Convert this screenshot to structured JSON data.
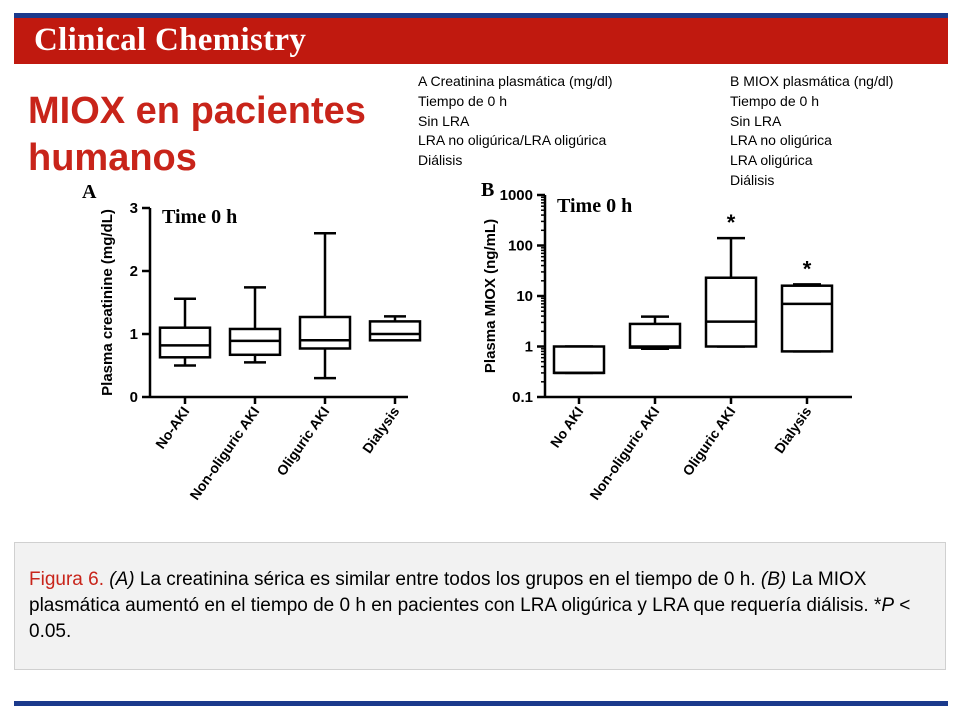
{
  "header": {
    "journal_title": "Clinical Chemistry",
    "header_color": "#c0190f",
    "rule_color": "#1b3a8c"
  },
  "slide": {
    "title": "MIOX en pacientes humanos",
    "title_color": "#c8241a"
  },
  "translation": {
    "col_a": [
      "A Creatinina plasmática (mg/dl)",
      "Tiempo de 0 h",
      "Sin LRA",
      "LRA no oligúrica/LRA oligúrica",
      "Diálisis"
    ],
    "col_b": [
      "B MIOX plasmática (ng/dl)",
      "Tiempo de 0 h",
      "Sin LRA",
      "LRA no oligúrica",
      "LRA oligúrica",
      "Diálisis"
    ]
  },
  "chart_data": [
    {
      "type": "boxplot",
      "panel_letter": "A",
      "annotation": "Time 0 h",
      "ylabel": "Plasma creatinine (mg/dL)",
      "ylim": [
        0,
        3
      ],
      "yscale": "linear",
      "yticks": [
        "0",
        "1",
        "2",
        "3"
      ],
      "categories": [
        "No-AKI",
        "Non-oliguric AKI",
        "Oliguric AKI",
        "Dialysis"
      ],
      "boxes": [
        {
          "min": 0.5,
          "q1": 0.63,
          "median": 0.82,
          "q3": 1.1,
          "max": 1.56
        },
        {
          "min": 0.55,
          "q1": 0.67,
          "median": 0.89,
          "q3": 1.08,
          "max": 1.74
        },
        {
          "min": 0.3,
          "q1": 0.77,
          "median": 0.9,
          "q3": 1.27,
          "max": 2.6
        },
        {
          "min": 0.9,
          "q1": 0.9,
          "median": 1.0,
          "q3": 1.2,
          "max": 1.28
        }
      ]
    },
    {
      "type": "boxplot",
      "panel_letter": "B",
      "annotation": "Time 0 h",
      "ylabel": "Plasma MIOX (ng/mL)",
      "ylim": [
        0.1,
        1000
      ],
      "yscale": "log",
      "yticks": [
        "0.1",
        "1",
        "10",
        "100",
        "1000"
      ],
      "categories": [
        "No AKI",
        "Non-oliguric AKI",
        "Oliguric AKI",
        "Dialysis"
      ],
      "boxes": [
        {
          "min": 0.3,
          "q1": 0.3,
          "median": 0.3,
          "q3": 1.0,
          "max": 1.0,
          "sig": ""
        },
        {
          "min": 0.9,
          "q1": 0.95,
          "median": 1.0,
          "q3": 2.8,
          "max": 3.9,
          "sig": ""
        },
        {
          "min": 1.0,
          "q1": 1.0,
          "median": 3.1,
          "q3": 23,
          "max": 140,
          "sig": "*"
        },
        {
          "min": 0.8,
          "q1": 0.8,
          "median": 7.0,
          "q3": 16,
          "max": 17,
          "sig": "*"
        }
      ]
    }
  ],
  "caption": {
    "fig_label": "Figura 6.",
    "a_label": "(A)",
    "a_text": " La creatinina sérica es similar entre todos los grupos en el tiempo de 0 h.",
    "b_label": "(B)",
    "b_text": " La MIOX plasmática aumentó en el tiempo de 0 h en pacientes con LRA oligúrica y LRA que requería diálisis. *",
    "p_letter": "P",
    "p_rest": " < 0.05."
  }
}
